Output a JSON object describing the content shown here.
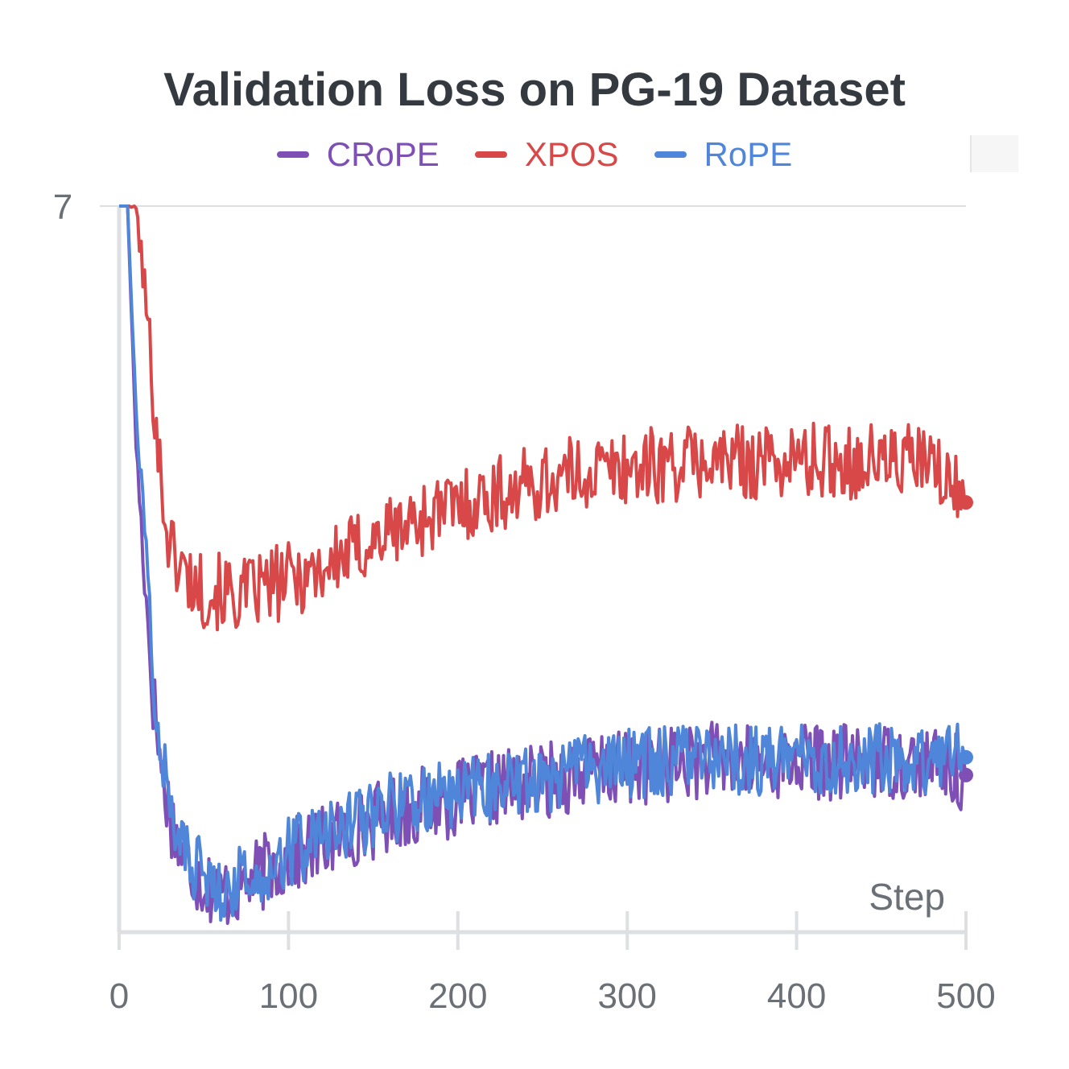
{
  "chart_data": {
    "type": "line",
    "title": "Validation Loss on PG-19 Dataset",
    "xlabel": "Step",
    "ylabel": "",
    "xlim": [
      0,
      500
    ],
    "ylim": [
      4.55,
      7
    ],
    "x_ticks": [
      "0",
      "100",
      "200",
      "300",
      "400",
      "500"
    ],
    "y_ticks": [
      "7"
    ],
    "legend_position": "top",
    "series": [
      {
        "name": "CRoPE",
        "color": "#7e4fb5",
        "x": [
          0,
          5,
          10,
          15,
          20,
          25,
          30,
          35,
          40,
          50,
          60,
          70,
          80,
          90,
          100,
          120,
          140,
          160,
          180,
          200,
          225,
          250,
          275,
          300,
          325,
          350,
          375,
          400,
          425,
          450,
          475,
          500
        ],
        "values": [
          7.0,
          7.0,
          6.2,
          5.75,
          5.35,
          5.1,
          4.95,
          4.85,
          4.78,
          4.72,
          4.68,
          4.7,
          4.73,
          4.77,
          4.8,
          4.85,
          4.9,
          4.95,
          4.98,
          5.0,
          5.04,
          5.06,
          5.09,
          5.1,
          5.12,
          5.13,
          5.12,
          5.13,
          5.12,
          5.13,
          5.12,
          5.08
        ]
      },
      {
        "name": "XPOS",
        "color": "#d94848",
        "x": [
          0,
          10,
          15,
          20,
          25,
          30,
          40,
          50,
          60,
          70,
          80,
          90,
          100,
          120,
          140,
          160,
          180,
          200,
          225,
          250,
          275,
          300,
          325,
          350,
          375,
          400,
          425,
          450,
          475,
          500
        ],
        "values": [
          7.0,
          7.0,
          6.72,
          6.4,
          6.05,
          5.85,
          5.75,
          5.7,
          5.7,
          5.68,
          5.7,
          5.72,
          5.74,
          5.78,
          5.84,
          5.9,
          5.95,
          5.99,
          6.03,
          6.07,
          6.1,
          6.12,
          6.13,
          6.14,
          6.14,
          6.14,
          6.14,
          6.14,
          6.14,
          6.0
        ]
      },
      {
        "name": "RoPE",
        "color": "#4f86d9",
        "x": [
          0,
          5,
          10,
          15,
          20,
          25,
          30,
          35,
          40,
          50,
          60,
          70,
          80,
          90,
          100,
          120,
          140,
          160,
          180,
          200,
          225,
          250,
          275,
          300,
          325,
          350,
          375,
          400,
          425,
          450,
          475,
          500
        ],
        "values": [
          7.0,
          7.0,
          6.3,
          5.9,
          5.45,
          5.15,
          4.98,
          4.87,
          4.8,
          4.74,
          4.71,
          4.72,
          4.75,
          4.79,
          4.82,
          4.87,
          4.92,
          4.97,
          5.0,
          5.02,
          5.05,
          5.07,
          5.1,
          5.12,
          5.13,
          5.14,
          5.13,
          5.14,
          5.13,
          5.14,
          5.13,
          5.14
        ]
      }
    ]
  }
}
